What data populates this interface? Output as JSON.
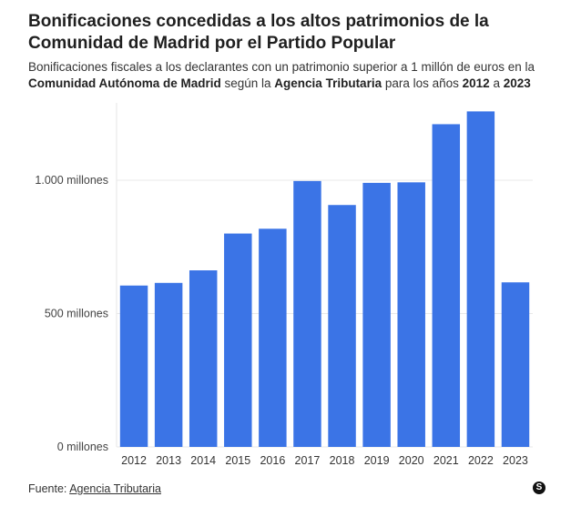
{
  "header": {
    "title": "Bonificaciones concedidas a los altos patrimonios de la Comunidad de Madrid por el Partido Popular",
    "subtitle_parts": [
      "Bonificaciones fiscales a los declarantes con un patrimonio superior a 1 millón de euros en la ",
      "Comunidad Autónoma de Madrid",
      " según la ",
      "Agencia Tributaria",
      " para los años ",
      "2012",
      " a ",
      "2023"
    ]
  },
  "chart_data": {
    "type": "bar",
    "title": "Bonificaciones concedidas a los altos patrimonios de la Comunidad de Madrid por el Partido Popular",
    "xlabel": "",
    "ylabel": "",
    "categories": [
      "2012",
      "2013",
      "2014",
      "2015",
      "2016",
      "2017",
      "2018",
      "2019",
      "2020",
      "2021",
      "2022",
      "2023"
    ],
    "values": [
      605,
      615,
      662,
      800,
      818,
      997,
      907,
      990,
      992,
      1210,
      1258,
      617
    ],
    "ylim": [
      0,
      1290
    ],
    "yticks": [
      0,
      500,
      1000
    ],
    "ytick_labels": [
      "0 millones",
      "500 millones",
      "1.000 millones"
    ],
    "bar_color": "#3b74e6",
    "grid": true,
    "legend": "none"
  },
  "footer": {
    "source_label": "Fuente: ",
    "source_link": "Agencia Tributaria",
    "logo_text": "S"
  }
}
